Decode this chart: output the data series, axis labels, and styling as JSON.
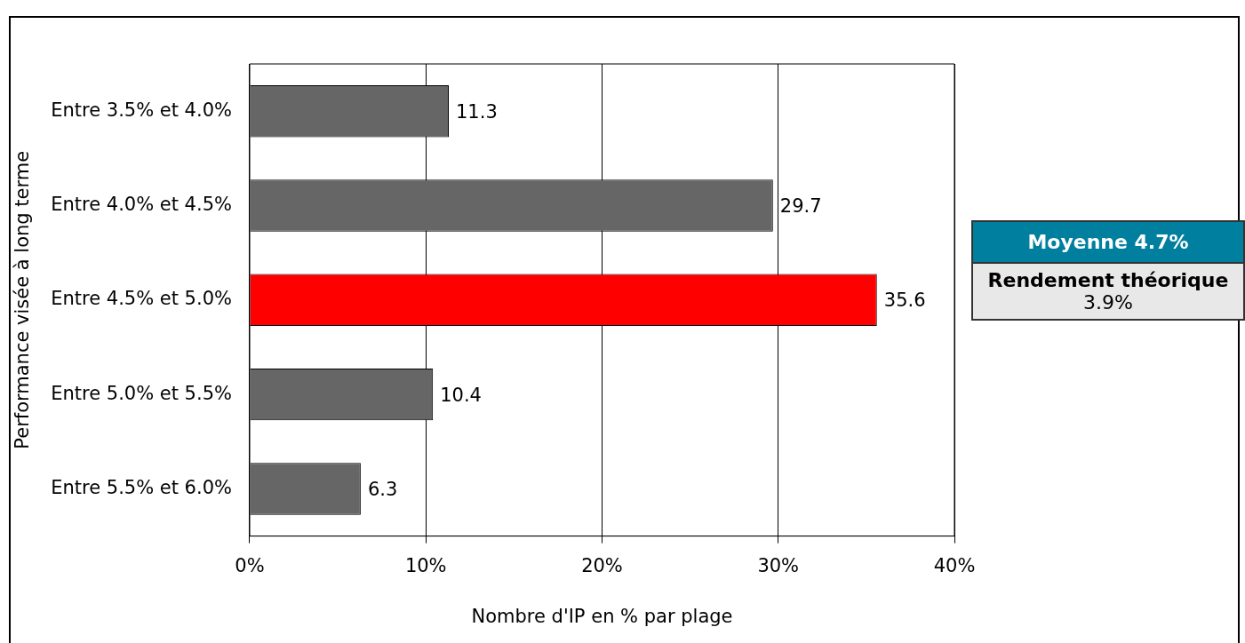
{
  "chart_data": {
    "type": "bar",
    "orientation": "horizontal",
    "xlabel": "Nombre d'IP en % par plage",
    "ylabel": "Performance visée à long terme",
    "categories": [
      "Entre 3.5% et 4.0%",
      "Entre 4.0% et 4.5%",
      "Entre 4.5% et 5.0%",
      "Entre 5.0% et 5.5%",
      "Entre 5.5% et 6.0%"
    ],
    "values": [
      11.3,
      29.7,
      35.6,
      10.4,
      6.3
    ],
    "colors": [
      "#666666",
      "#666666",
      "#ff0000",
      "#666666",
      "#666666"
    ],
    "xlim": [
      0,
      40
    ],
    "xticks": [
      {
        "value": 0,
        "label": "0%"
      },
      {
        "value": 10,
        "label": "10%"
      },
      {
        "value": 20,
        "label": "20%"
      },
      {
        "value": 30,
        "label": "30%"
      },
      {
        "value": 40,
        "label": "40%"
      }
    ],
    "grid": "x",
    "data_labels": true,
    "legend": false,
    "annotations": [
      "Moyenne 4.7%",
      "Rendement théorique",
      "3.9%"
    ]
  }
}
